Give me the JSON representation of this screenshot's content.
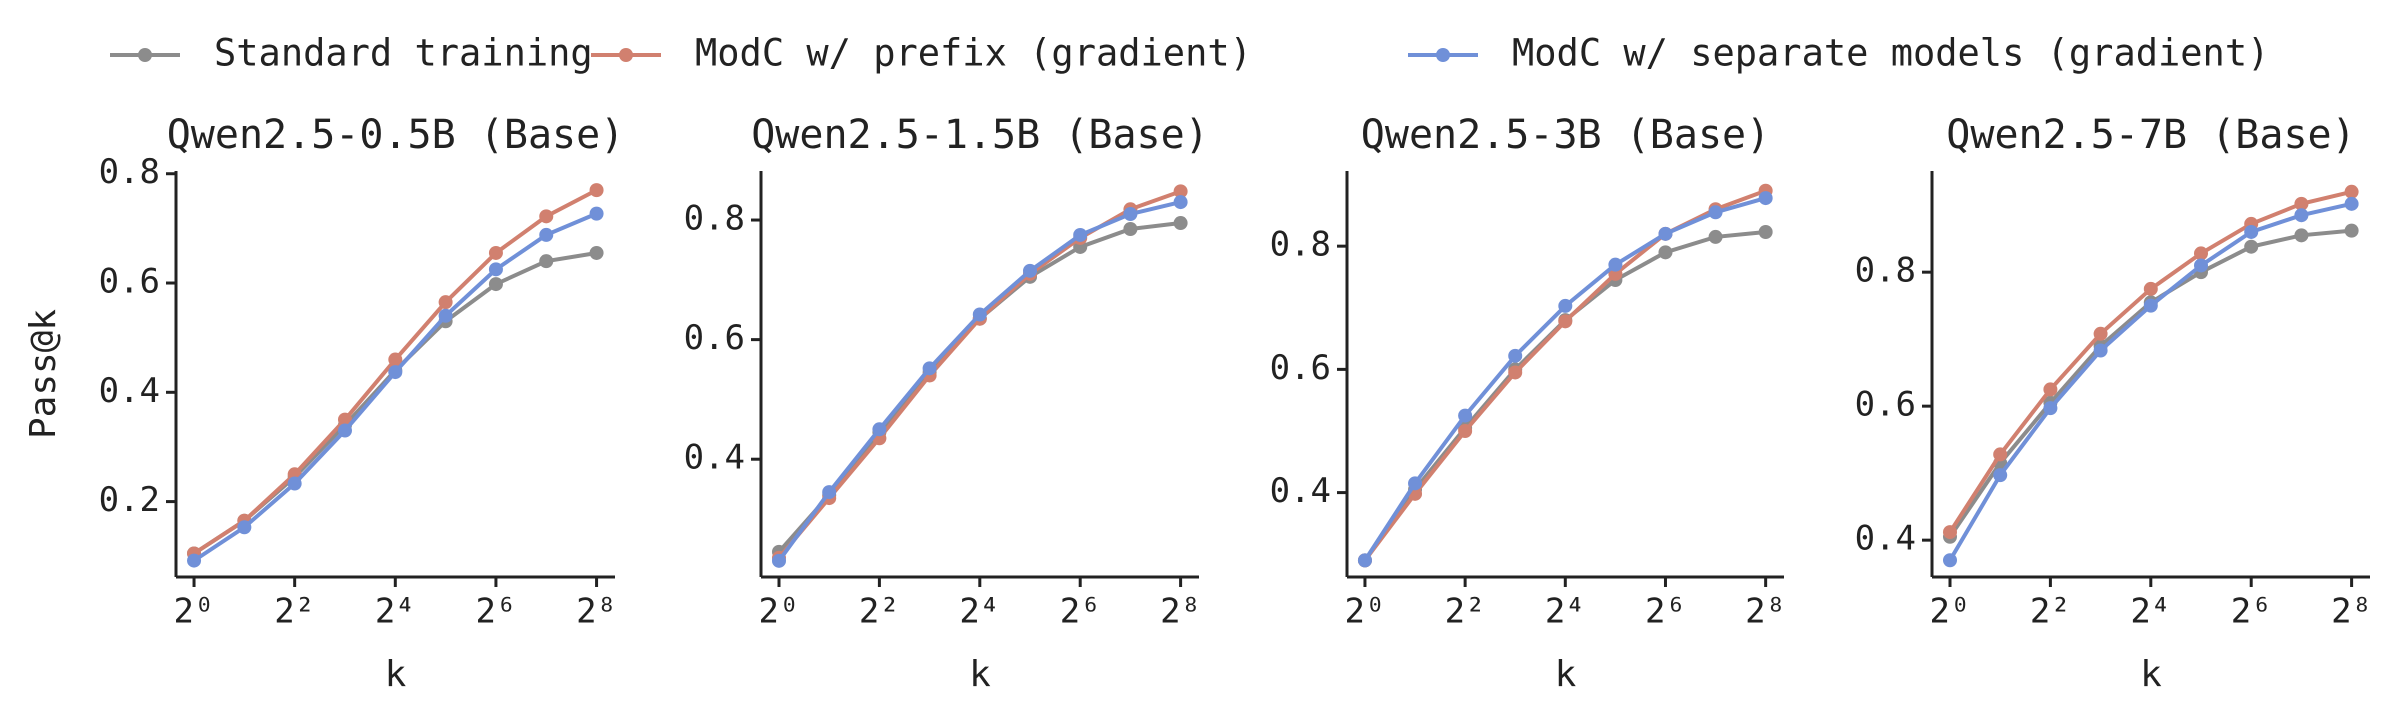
{
  "chart_data": [
    {
      "type": "line",
      "title": "Qwen2.5-0.5B (Base)",
      "xlabel": "k",
      "ylabel": "Pass@k",
      "xscale": "log2",
      "x": [
        1,
        2,
        4,
        8,
        16,
        32,
        64,
        128,
        256
      ],
      "xlim": [
        0.78,
        330
      ],
      "ylim": [
        0.062,
        0.805
      ],
      "xticks": [
        {
          "value": 1,
          "label": "2⁰"
        },
        {
          "value": 4,
          "label": "2²"
        },
        {
          "value": 16,
          "label": "2⁴"
        },
        {
          "value": 64,
          "label": "2⁶"
        },
        {
          "value": 256,
          "label": "2⁸"
        }
      ],
      "yticks": [
        0.2,
        0.4,
        0.6,
        0.8
      ],
      "series": [
        {
          "name": "Standard training",
          "color": "#8c8c8c",
          "values": [
            0.105,
            0.165,
            0.245,
            0.34,
            0.44,
            0.53,
            0.598,
            0.64,
            0.655
          ]
        },
        {
          "name": "ModC w/ prefix (gradient)",
          "color": "#d1806f",
          "values": [
            0.105,
            0.165,
            0.25,
            0.35,
            0.46,
            0.565,
            0.655,
            0.722,
            0.77
          ]
        },
        {
          "name": "ModC w/ separate models (gradient)",
          "color": "#7090d8",
          "values": [
            0.092,
            0.153,
            0.233,
            0.33,
            0.437,
            0.54,
            0.625,
            0.688,
            0.727
          ]
        }
      ]
    },
    {
      "type": "line",
      "title": "Qwen2.5-1.5B (Base)",
      "xlabel": "k",
      "xscale": "log2",
      "x": [
        1,
        2,
        4,
        8,
        16,
        32,
        64,
        128,
        256
      ],
      "xlim": [
        0.78,
        330
      ],
      "ylim": [
        0.203,
        0.882
      ],
      "xticks": [
        {
          "value": 1,
          "label": "2⁰"
        },
        {
          "value": 4,
          "label": "2²"
        },
        {
          "value": 16,
          "label": "2⁴"
        },
        {
          "value": 64,
          "label": "2⁶"
        },
        {
          "value": 256,
          "label": "2⁸"
        }
      ],
      "yticks": [
        0.4,
        0.6,
        0.8
      ],
      "series": [
        {
          "color": "#8c8c8c",
          "values": [
            0.245,
            0.34,
            0.445,
            0.545,
            0.635,
            0.705,
            0.755,
            0.785,
            0.795
          ]
        },
        {
          "color": "#d1806f",
          "values": [
            0.235,
            0.335,
            0.435,
            0.54,
            0.635,
            0.71,
            0.77,
            0.818,
            0.848
          ]
        },
        {
          "color": "#7090d8",
          "values": [
            0.23,
            0.345,
            0.45,
            0.552,
            0.642,
            0.715,
            0.775,
            0.81,
            0.83
          ]
        }
      ]
    },
    {
      "type": "line",
      "title": "Qwen2.5-3B (Base)",
      "xlabel": "k",
      "xscale": "log2",
      "x": [
        1,
        2,
        4,
        8,
        16,
        32,
        64,
        128,
        256
      ],
      "xlim": [
        0.78,
        330
      ],
      "ylim": [
        0.263,
        0.922
      ],
      "xticks": [
        {
          "value": 1,
          "label": "2⁰"
        },
        {
          "value": 4,
          "label": "2²"
        },
        {
          "value": 16,
          "label": "2⁴"
        },
        {
          "value": 64,
          "label": "2⁶"
        },
        {
          "value": 256,
          "label": "2⁸"
        }
      ],
      "yticks": [
        0.4,
        0.6,
        0.8
      ],
      "series": [
        {
          "color": "#8c8c8c",
          "values": [
            0.29,
            0.405,
            0.505,
            0.6,
            0.68,
            0.745,
            0.79,
            0.815,
            0.823
          ]
        },
        {
          "color": "#d1806f",
          "values": [
            0.29,
            0.398,
            0.5,
            0.595,
            0.678,
            0.755,
            0.82,
            0.86,
            0.89
          ]
        },
        {
          "color": "#7090d8",
          "values": [
            0.29,
            0.415,
            0.525,
            0.622,
            0.703,
            0.77,
            0.82,
            0.855,
            0.878
          ]
        }
      ]
    },
    {
      "type": "line",
      "title": "Qwen2.5-7B (Base)",
      "xlabel": "k",
      "xscale": "log2",
      "x": [
        1,
        2,
        4,
        8,
        16,
        32,
        64,
        128,
        256
      ],
      "xlim": [
        0.78,
        330
      ],
      "ylim": [
        0.345,
        0.951
      ],
      "xticks": [
        {
          "value": 1,
          "label": "2⁰"
        },
        {
          "value": 4,
          "label": "2²"
        },
        {
          "value": 16,
          "label": "2⁴"
        },
        {
          "value": 64,
          "label": "2⁶"
        },
        {
          "value": 256,
          "label": "2⁸"
        }
      ],
      "yticks": [
        0.4,
        0.6,
        0.8
      ],
      "series": [
        {
          "color": "#8c8c8c",
          "values": [
            0.405,
            0.515,
            0.605,
            0.69,
            0.755,
            0.8,
            0.838,
            0.855,
            0.862
          ]
        },
        {
          "color": "#d1806f",
          "values": [
            0.412,
            0.528,
            0.625,
            0.708,
            0.775,
            0.828,
            0.872,
            0.902,
            0.92
          ]
        },
        {
          "color": "#7090d8",
          "values": [
            0.37,
            0.497,
            0.597,
            0.683,
            0.75,
            0.81,
            0.86,
            0.885,
            0.902
          ]
        }
      ]
    }
  ]
}
